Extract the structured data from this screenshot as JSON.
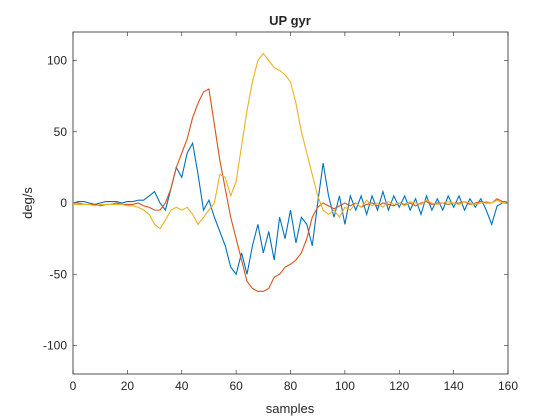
{
  "chart_data": {
    "type": "line",
    "title": "UP gyr",
    "x_label": "samples",
    "y_label": "deg/s",
    "x": [
      0,
      2,
      4,
      6,
      8,
      10,
      12,
      14,
      16,
      18,
      20,
      22,
      24,
      26,
      28,
      30,
      32,
      34,
      36,
      38,
      40,
      42,
      44,
      46,
      48,
      50,
      52,
      54,
      56,
      58,
      60,
      62,
      64,
      66,
      68,
      70,
      72,
      74,
      76,
      78,
      80,
      82,
      84,
      86,
      88,
      90,
      92,
      94,
      96,
      98,
      100,
      102,
      104,
      106,
      108,
      110,
      112,
      114,
      116,
      118,
      120,
      122,
      124,
      126,
      128,
      130,
      132,
      134,
      136,
      138,
      140,
      142,
      144,
      146,
      148,
      150,
      152,
      154,
      156,
      158,
      160
    ],
    "series": [
      {
        "color": "#0072BD",
        "values": [
          0,
          1,
          1,
          0,
          -1,
          0,
          1,
          1,
          1,
          0,
          1,
          1,
          2,
          2,
          5,
          8,
          0,
          -5,
          10,
          25,
          18,
          35,
          42,
          20,
          -5,
          2,
          -10,
          -20,
          -30,
          -45,
          -50,
          -35,
          -50,
          -30,
          -15,
          -35,
          -20,
          -40,
          -10,
          -25,
          -5,
          -28,
          -10,
          -15,
          -30,
          0,
          28,
          5,
          -10,
          5,
          -15,
          5,
          -5,
          5,
          -8,
          5,
          -5,
          8,
          -5,
          5,
          -3,
          5,
          -5,
          3,
          -8,
          5,
          -5,
          3,
          -5,
          5,
          -3,
          5,
          -5,
          3,
          -3,
          3,
          -5,
          -15,
          -2,
          0,
          0
        ]
      },
      {
        "color": "#D95319",
        "values": [
          0,
          0,
          -1,
          -1,
          -1,
          -2,
          -1,
          -1,
          0,
          -1,
          -1,
          -1,
          0,
          -2,
          -3,
          -5,
          -5,
          0,
          10,
          25,
          35,
          45,
          60,
          70,
          78,
          80,
          55,
          30,
          10,
          -10,
          -25,
          -40,
          -55,
          -60,
          -62,
          -62,
          -60,
          -52,
          -50,
          -45,
          -43,
          -40,
          -35,
          -25,
          -10,
          -3,
          0,
          -2,
          -4,
          -2,
          0,
          -2,
          0,
          -3,
          -1,
          0,
          -2,
          0,
          -1,
          -2,
          0,
          -1,
          0,
          -2,
          0,
          1,
          -1,
          0,
          0,
          -1,
          0,
          0,
          1,
          -1,
          0,
          1,
          0,
          0,
          3,
          1,
          1
        ]
      },
      {
        "color": "#EDB120",
        "values": [
          -1,
          -1,
          -1,
          -1,
          -2,
          -1,
          -1,
          -1,
          -1,
          -1,
          -2,
          -2,
          -3,
          -5,
          -8,
          -15,
          -18,
          -12,
          -5,
          -3,
          -5,
          -3,
          -8,
          -15,
          -10,
          -5,
          0,
          20,
          18,
          5,
          15,
          40,
          65,
          85,
          100,
          105,
          100,
          95,
          93,
          90,
          85,
          70,
          50,
          35,
          20,
          5,
          -5,
          -8,
          -5,
          -10,
          -3,
          -5,
          0,
          -3,
          2,
          -2,
          0,
          -3,
          1,
          -1,
          0,
          -2,
          1,
          0,
          -1,
          2,
          0,
          -1,
          0,
          1,
          0,
          -1,
          1,
          0,
          -1,
          0,
          1,
          0,
          2,
          0,
          1
        ]
      }
    ],
    "xlim": [
      0,
      160
    ],
    "xticks": [
      0,
      20,
      40,
      60,
      80,
      100,
      120,
      140,
      160
    ],
    "ylim": [
      -120,
      120
    ],
    "yticks": [
      -100,
      -50,
      0,
      50,
      100
    ],
    "grid": false
  }
}
